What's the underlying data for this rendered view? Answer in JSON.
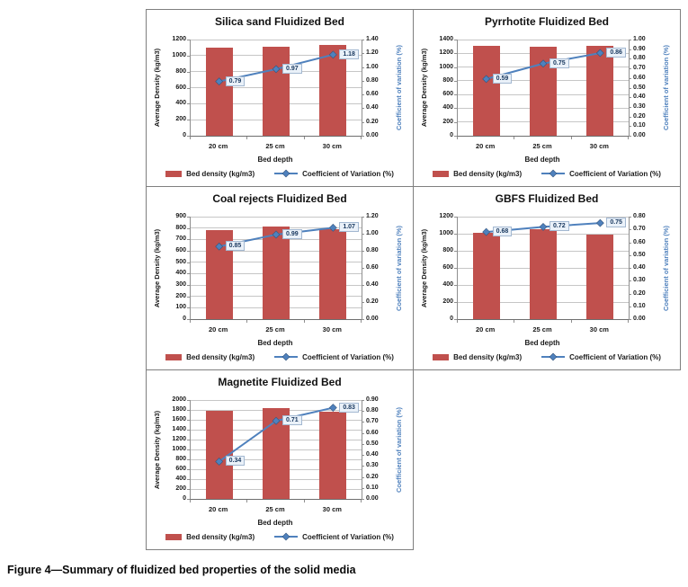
{
  "figure": {
    "caption": "Figure 4—Summary of fluidized bed properties of the solid media"
  },
  "axes": {
    "xlabel": "Bed depth",
    "left_ylabel": "Average Density (kg/m3)",
    "right_ylabel": "Coefficient of variation (%)"
  },
  "legend": {
    "density_label": "Bed density (kg/m3)",
    "cov_label": "Coefficient of Variation (%)"
  },
  "colors": {
    "bar": "#c0504d",
    "line": "#4f81bd",
    "marker": "#4f81bd",
    "marker_edge": "#35567d",
    "label_text": "#17375e",
    "label_bg": "#eaf1f9",
    "grid": "#c6c6c6",
    "right_axis_title": "#4f81bd",
    "left_axis_title": "#1a1a1a"
  },
  "chart_data": [
    {
      "type": "bar",
      "title": "Silica sand Fluidized Bed",
      "categories": [
        "20 cm",
        "25 cm",
        "30 cm"
      ],
      "series": [
        {
          "name": "Bed density (kg/m3)",
          "kind": "bar",
          "axis": "left",
          "values": [
            1100,
            1110,
            1130
          ]
        },
        {
          "name": "Coefficient of Variation (%)",
          "kind": "line",
          "axis": "right",
          "values": [
            0.79,
            0.97,
            1.18
          ]
        }
      ],
      "xlabel": "Bed depth",
      "left_axis": {
        "label": "Average Density (kg/m3)",
        "min": 0,
        "max": 1200,
        "step": 200
      },
      "right_axis": {
        "label": "Coefficient of variation (%)",
        "min": 0,
        "max": 1.4,
        "step": 0.2
      },
      "grid": {
        "row": 0,
        "col": 0
      }
    },
    {
      "type": "bar",
      "title": "Pyrrhotite Fluidized Bed",
      "categories": [
        "20 cm",
        "25 cm",
        "30 cm"
      ],
      "series": [
        {
          "name": "Bed density (kg/m3)",
          "kind": "bar",
          "axis": "left",
          "values": [
            1315,
            1295,
            1305
          ]
        },
        {
          "name": "Coefficient of Variation (%)",
          "kind": "line",
          "axis": "right",
          "values": [
            0.59,
            0.75,
            0.86
          ]
        }
      ],
      "xlabel": "Bed depth",
      "left_axis": {
        "label": "Average Density (kg/m3)",
        "min": 0,
        "max": 1400,
        "step": 200
      },
      "right_axis": {
        "label": "Coefficient of variation (%)",
        "min": 0,
        "max": 1.0,
        "step": 0.1
      },
      "grid": {
        "row": 0,
        "col": 1
      }
    },
    {
      "type": "bar",
      "title": "Coal rejects Fluidized Bed",
      "categories": [
        "20 cm",
        "25 cm",
        "30 cm"
      ],
      "series": [
        {
          "name": "Bed density (kg/m3)",
          "kind": "bar",
          "axis": "left",
          "values": [
            780,
            810,
            790
          ]
        },
        {
          "name": "Coefficient of Variation (%)",
          "kind": "line",
          "axis": "right",
          "values": [
            0.85,
            0.99,
            1.07
          ]
        }
      ],
      "xlabel": "Bed depth",
      "left_axis": {
        "label": "Average Density (kg/m3)",
        "min": 0,
        "max": 900,
        "step": 100
      },
      "right_axis": {
        "label": "Coefficient of variation (%)",
        "min": 0,
        "max": 1.2,
        "step": 0.2
      },
      "grid": {
        "row": 1,
        "col": 0
      }
    },
    {
      "type": "bar",
      "title": "GBFS Fluidized Bed",
      "categories": [
        "20 cm",
        "25 cm",
        "30 cm"
      ],
      "series": [
        {
          "name": "Bed density (kg/m3)",
          "kind": "bar",
          "axis": "left",
          "values": [
            1010,
            1050,
            985
          ]
        },
        {
          "name": "Coefficient of Variation (%)",
          "kind": "line",
          "axis": "right",
          "values": [
            0.68,
            0.72,
            0.75
          ]
        }
      ],
      "xlabel": "Bed depth",
      "left_axis": {
        "label": "Average Density (kg/m3)",
        "min": 0,
        "max": 1200,
        "step": 200
      },
      "right_axis": {
        "label": "Coefficient of variation (%)",
        "min": 0,
        "max": 0.8,
        "step": 0.1
      },
      "grid": {
        "row": 1,
        "col": 1
      }
    },
    {
      "type": "bar",
      "title": "Magnetite Fluidized Bed",
      "categories": [
        "20 cm",
        "25 cm",
        "30 cm"
      ],
      "series": [
        {
          "name": "Bed density (kg/m3)",
          "kind": "bar",
          "axis": "left",
          "values": [
            1790,
            1830,
            1760
          ]
        },
        {
          "name": "Coefficient of Variation (%)",
          "kind": "line",
          "axis": "right",
          "values": [
            0.34,
            0.71,
            0.83
          ]
        }
      ],
      "xlabel": "Bed depth",
      "left_axis": {
        "label": "Average Density (kg/m3)",
        "min": 0,
        "max": 2000,
        "step": 200
      },
      "right_axis": {
        "label": "Coefficient of variation (%)",
        "min": 0,
        "max": 0.9,
        "step": 0.1
      },
      "grid": {
        "row": 2,
        "col": 0
      }
    }
  ]
}
